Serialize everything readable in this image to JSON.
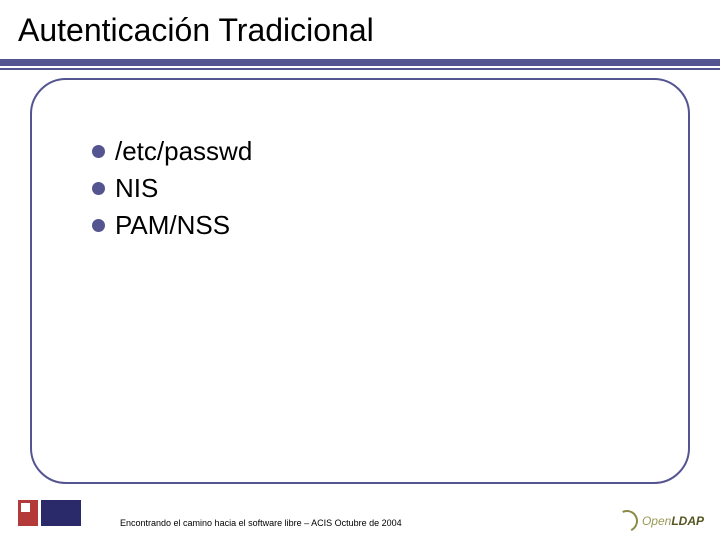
{
  "title": "Autenticación Tradicional",
  "bullets": {
    "item0": "/etc/passwd",
    "item1": "NIS",
    "item2": "PAM/NSS"
  },
  "footer_caption": "Encontrando el camino hacia el software libre – ACIS Octubre de 2004",
  "right_logo": {
    "part1": "Open",
    "part2": "LDAP"
  },
  "colors": {
    "accent": "#545490",
    "bullet": "#545490",
    "acis_red": "#b43a3a",
    "acis_blue": "#2a2a6a",
    "openldap_olive": "#8a8a46"
  }
}
